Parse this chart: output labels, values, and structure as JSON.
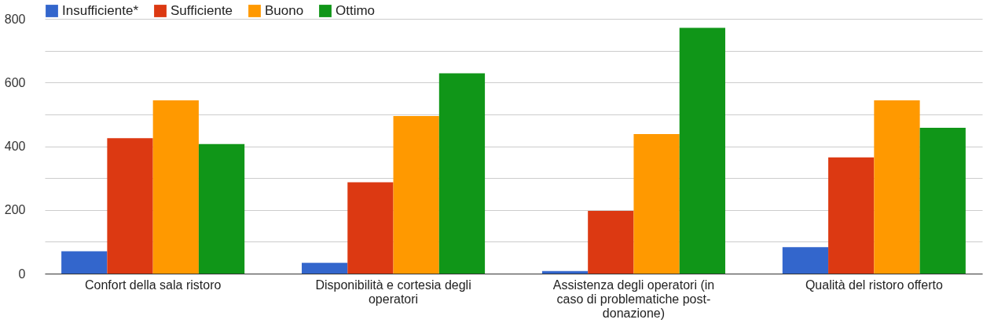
{
  "chart_data": {
    "type": "bar",
    "categories": [
      "Confort della sala ristoro",
      "Disponibilità e cortesia degli operatori",
      "Assistenza degli operatori (in caso di problematiche post-donazione)",
      "Qualità del ristoro offerto"
    ],
    "series": [
      {
        "name": "Insufficiente*",
        "color": "#3366cc",
        "values": [
          70,
          34,
          8,
          83
        ]
      },
      {
        "name": "Sufficiente",
        "color": "#dc3912",
        "values": [
          425,
          287,
          197,
          365
        ]
      },
      {
        "name": "Buono",
        "color": "#ff9900",
        "values": [
          544,
          495,
          438,
          544
        ]
      },
      {
        "name": "Ottimo",
        "color": "#109618",
        "values": [
          407,
          629,
          772,
          458
        ]
      }
    ],
    "ylim": [
      0,
      800
    ],
    "yticks": [
      0,
      {
        "value": 100,
        "label": null
      },
      200,
      {
        "value": 300,
        "label": null
      },
      400,
      {
        "value": 500,
        "label": null
      },
      600,
      {
        "value": 700,
        "label": null
      },
      800
    ],
    "grid": "y",
    "legend": "top left"
  }
}
